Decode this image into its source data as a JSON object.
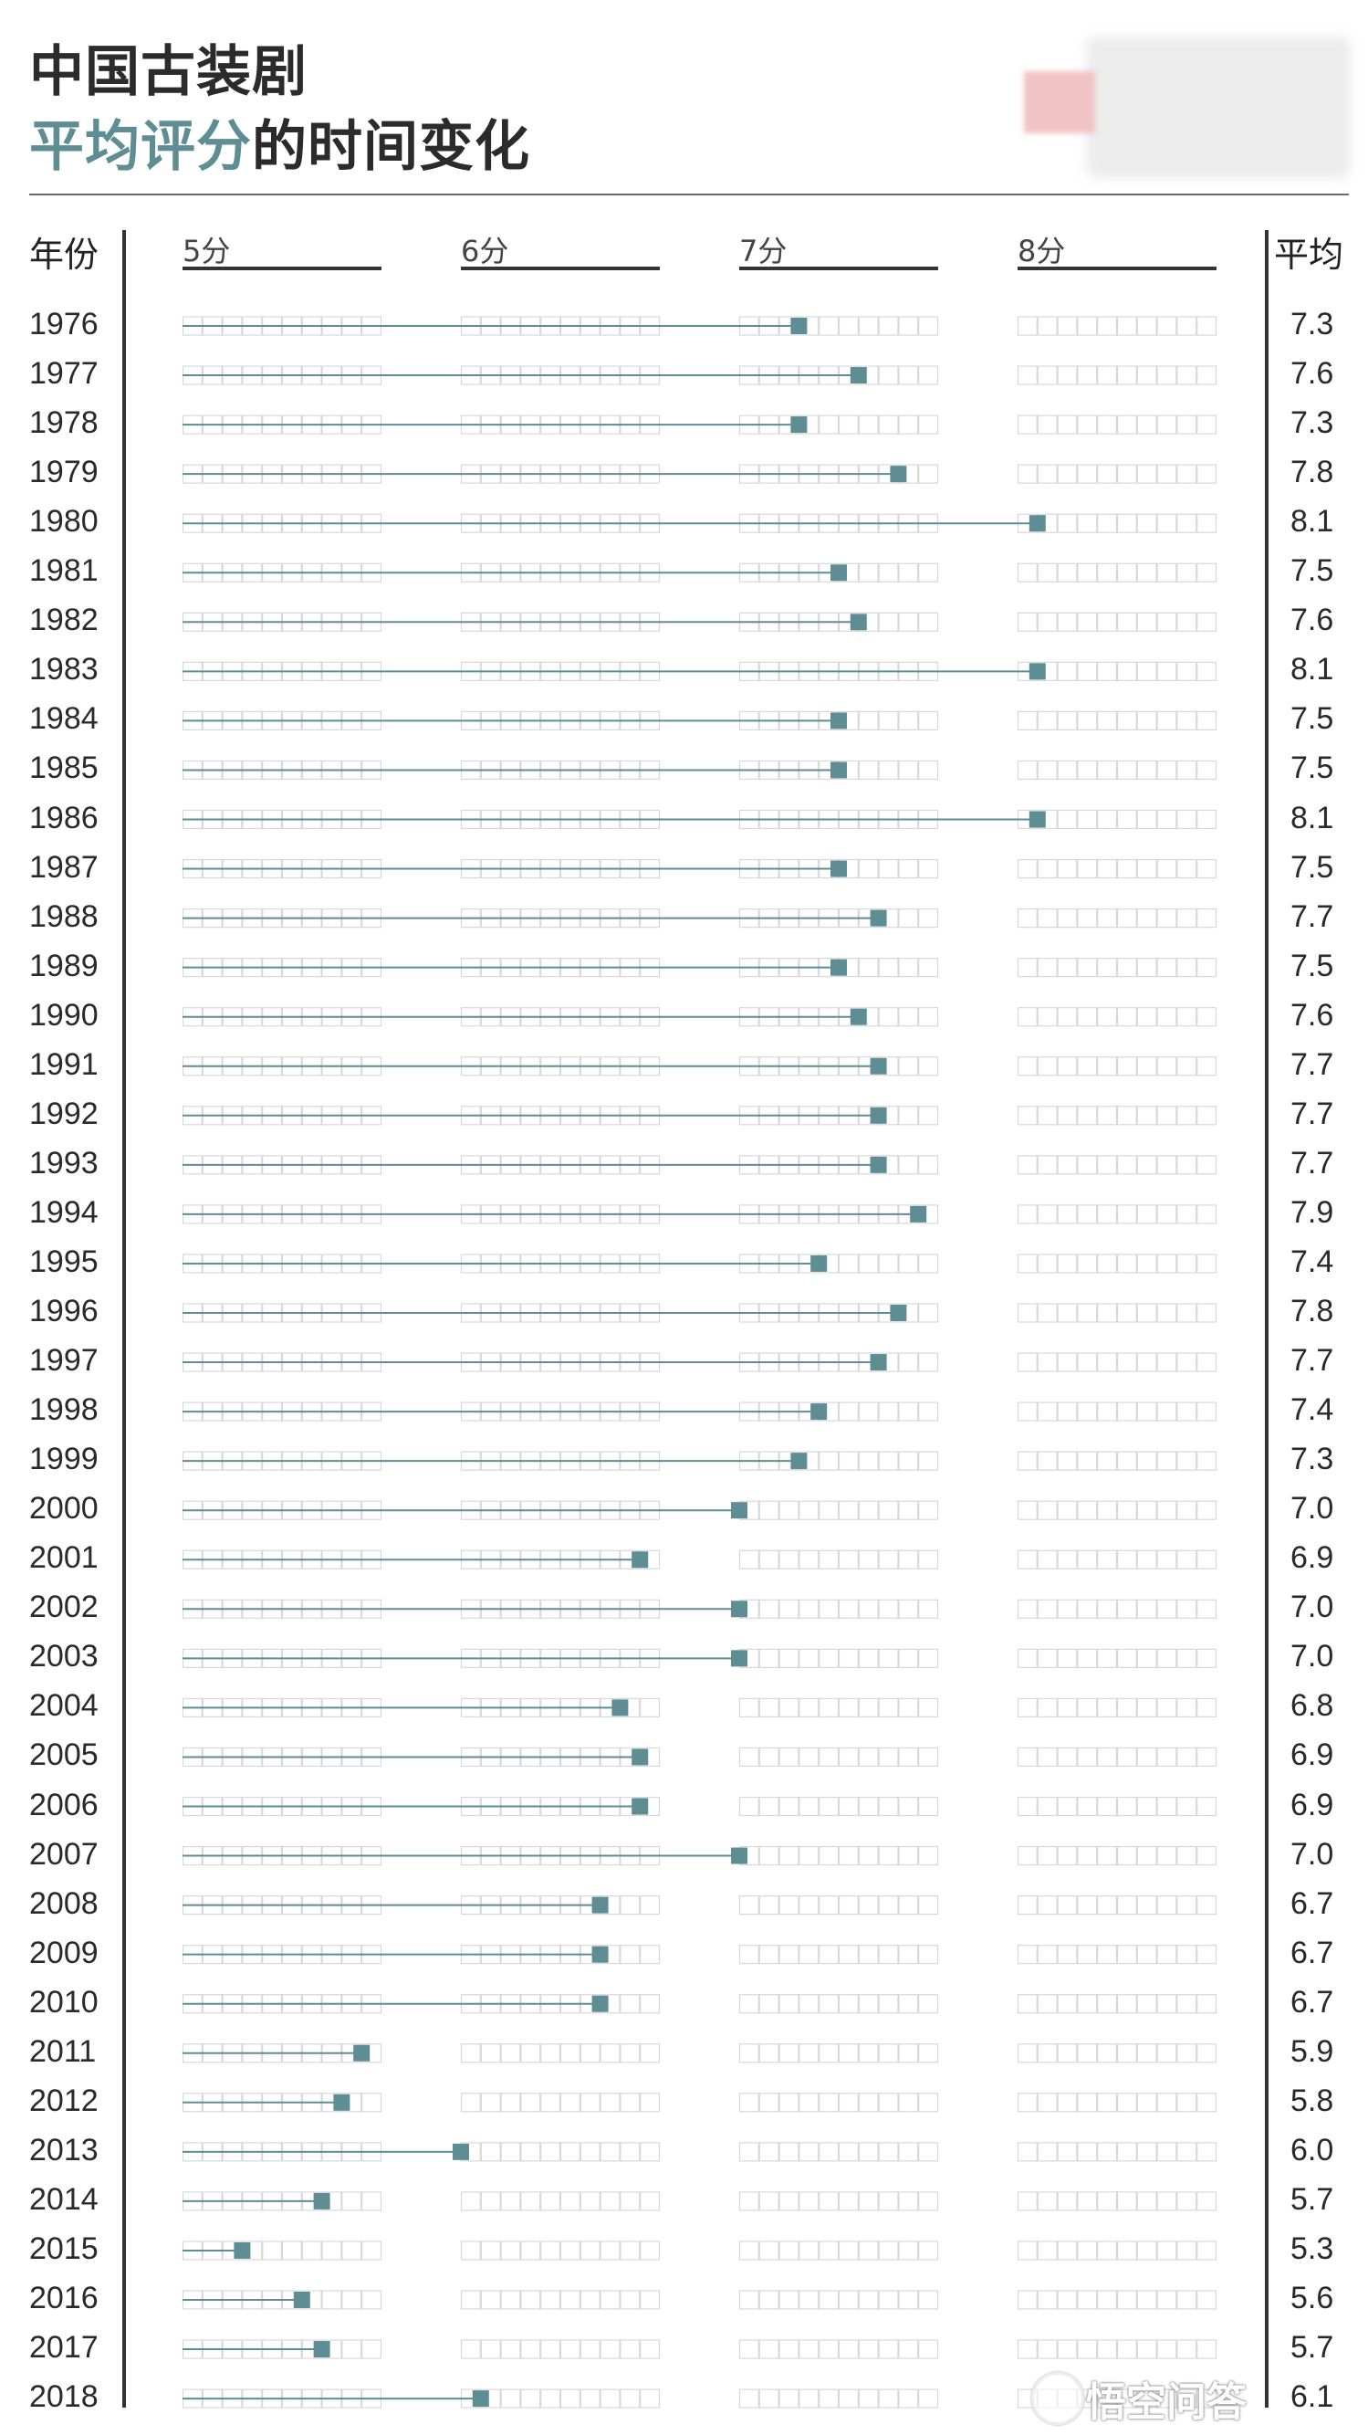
{
  "title": {
    "line1": "中国古装剧",
    "line2_accent": "平均评分",
    "line2_rest": "的时间变化"
  },
  "headers": {
    "year": "年份",
    "average": "平均"
  },
  "watermark": "悟空问答",
  "colors": {
    "accent": "#5e8d93",
    "grid": "#d8d8d8",
    "text": "#222222"
  },
  "chart_data": {
    "type": "scatter",
    "xlim": [
      5,
      9
    ],
    "x_ticks": [
      {
        "value": 5,
        "label": "5分"
      },
      {
        "value": 6,
        "label": "6分"
      },
      {
        "value": 7,
        "label": "7分"
      },
      {
        "value": 8,
        "label": "8分"
      }
    ],
    "rows": [
      {
        "year": "1976",
        "score": 7.3,
        "label": "7.3"
      },
      {
        "year": "1977",
        "score": 7.6,
        "label": "7.6"
      },
      {
        "year": "1978",
        "score": 7.3,
        "label": "7.3"
      },
      {
        "year": "1979",
        "score": 7.8,
        "label": "7.8"
      },
      {
        "year": "1980",
        "score": 8.1,
        "label": "8.1"
      },
      {
        "year": "1981",
        "score": 7.5,
        "label": "7.5"
      },
      {
        "year": "1982",
        "score": 7.6,
        "label": "7.6"
      },
      {
        "year": "1983",
        "score": 8.1,
        "label": "8.1"
      },
      {
        "year": "1984",
        "score": 7.5,
        "label": "7.5"
      },
      {
        "year": "1985",
        "score": 7.5,
        "label": "7.5"
      },
      {
        "year": "1986",
        "score": 8.1,
        "label": "8.1"
      },
      {
        "year": "1987",
        "score": 7.5,
        "label": "7.5"
      },
      {
        "year": "1988",
        "score": 7.7,
        "label": "7.7"
      },
      {
        "year": "1989",
        "score": 7.5,
        "label": "7.5"
      },
      {
        "year": "1990",
        "score": 7.6,
        "label": "7.6"
      },
      {
        "year": "1991",
        "score": 7.7,
        "label": "7.7"
      },
      {
        "year": "1992",
        "score": 7.7,
        "label": "7.7"
      },
      {
        "year": "1993",
        "score": 7.7,
        "label": "7.7"
      },
      {
        "year": "1994",
        "score": 7.9,
        "label": "7.9"
      },
      {
        "year": "1995",
        "score": 7.4,
        "label": "7.4"
      },
      {
        "year": "1996",
        "score": 7.8,
        "label": "7.8"
      },
      {
        "year": "1997",
        "score": 7.7,
        "label": "7.7"
      },
      {
        "year": "1998",
        "score": 7.4,
        "label": "7.4"
      },
      {
        "year": "1999",
        "score": 7.3,
        "label": "7.3"
      },
      {
        "year": "2000",
        "score": 7.0,
        "label": "7.0"
      },
      {
        "year": "2001",
        "score": 6.9,
        "label": "6.9"
      },
      {
        "year": "2002",
        "score": 7.0,
        "label": "7.0"
      },
      {
        "year": "2003",
        "score": 7.0,
        "label": "7.0"
      },
      {
        "year": "2004",
        "score": 6.8,
        "label": "6.8"
      },
      {
        "year": "2005",
        "score": 6.9,
        "label": "6.9"
      },
      {
        "year": "2006",
        "score": 6.9,
        "label": "6.9"
      },
      {
        "year": "2007",
        "score": 7.0,
        "label": "7.0"
      },
      {
        "year": "2008",
        "score": 6.7,
        "label": "6.7"
      },
      {
        "year": "2009",
        "score": 6.7,
        "label": "6.7"
      },
      {
        "year": "2010",
        "score": 6.7,
        "label": "6.7"
      },
      {
        "year": "2011",
        "score": 5.9,
        "label": "5.9"
      },
      {
        "year": "2012",
        "score": 5.8,
        "label": "5.8"
      },
      {
        "year": "2013",
        "score": 6.0,
        "label": "6.0"
      },
      {
        "year": "2014",
        "score": 5.7,
        "label": "5.7"
      },
      {
        "year": "2015",
        "score": 5.3,
        "label": "5.3"
      },
      {
        "year": "2016",
        "score": 5.6,
        "label": "5.6"
      },
      {
        "year": "2017",
        "score": 5.7,
        "label": "5.7"
      },
      {
        "year": "2018",
        "score": 6.1,
        "label": "6.1"
      }
    ]
  }
}
